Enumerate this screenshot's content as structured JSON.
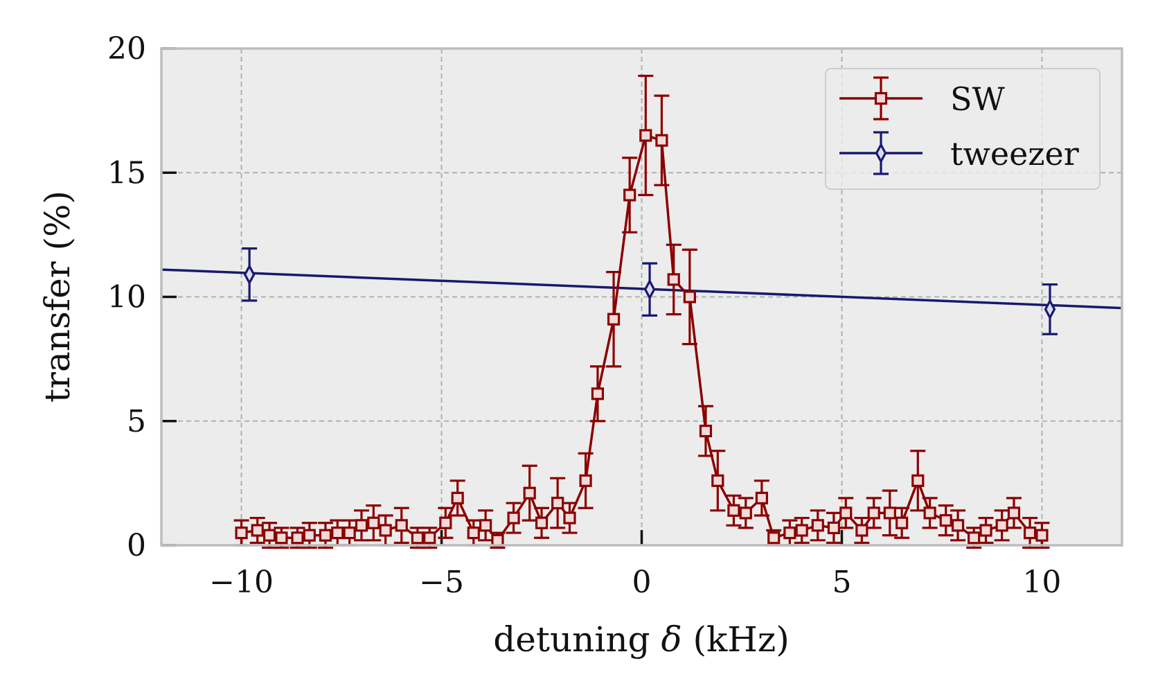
{
  "chart_data": {
    "type": "line",
    "title": "",
    "xlabel_parts": [
      "detuning ",
      "δ",
      " (kHz)"
    ],
    "ylabel": "transfer (%)",
    "xlim": [
      -12,
      12
    ],
    "ylim": [
      0,
      20
    ],
    "xticks": [
      -10,
      -5,
      0,
      5,
      10
    ],
    "xtick_labels": [
      "−10",
      "−5",
      "0",
      "5",
      "10"
    ],
    "yticks": [
      0,
      5,
      10,
      15,
      20
    ],
    "ytick_labels": [
      "0",
      "5",
      "10",
      "15",
      "20"
    ],
    "grid": true,
    "legend_position": "top-right",
    "series": [
      {
        "name": "SW",
        "color": "#8b0000",
        "marker": "square",
        "x": [
          -10,
          -9.6,
          -9.3,
          -9.0,
          -8.6,
          -8.3,
          -7.9,
          -7.6,
          -7.3,
          -7.0,
          -6.7,
          -6.4,
          -6.0,
          -5.6,
          -5.3,
          -4.9,
          -4.6,
          -4.2,
          -3.9,
          -3.6,
          -3.2,
          -2.8,
          -2.5,
          -2.1,
          -1.8,
          -1.4,
          -1.1,
          -0.7,
          -0.3,
          0.1,
          0.5,
          0.8,
          1.2,
          1.6,
          1.9,
          2.3,
          2.6,
          3.0,
          3.3,
          3.7,
          4.0,
          4.4,
          4.8,
          5.1,
          5.5,
          5.8,
          6.2,
          6.5,
          6.9,
          7.2,
          7.6,
          7.9,
          8.3,
          8.6,
          9.0,
          9.3,
          9.7,
          10.0
        ],
        "y": [
          0.5,
          0.6,
          0.4,
          0.3,
          0.3,
          0.4,
          0.4,
          0.5,
          0.5,
          0.8,
          0.9,
          0.6,
          0.8,
          0.3,
          0.3,
          0.9,
          1.9,
          0.5,
          0.8,
          0.2,
          1.1,
          2.1,
          0.9,
          1.7,
          1.1,
          2.6,
          6.1,
          9.1,
          14.1,
          16.5,
          16.3,
          10.7,
          10.0,
          4.6,
          2.6,
          1.4,
          1.3,
          1.9,
          0.3,
          0.5,
          0.6,
          0.8,
          0.7,
          1.3,
          0.6,
          1.3,
          1.3,
          0.9,
          2.6,
          1.3,
          1.0,
          0.8,
          0.3,
          0.6,
          0.8,
          1.3,
          0.5,
          0.4
        ],
        "yerr": [
          0.5,
          0.5,
          0.5,
          0.4,
          0.4,
          0.5,
          0.5,
          0.5,
          0.5,
          0.6,
          0.7,
          0.6,
          0.7,
          0.4,
          0.4,
          0.6,
          0.7,
          0.5,
          0.6,
          0.3,
          0.6,
          1.1,
          0.6,
          1.0,
          0.6,
          1.1,
          1.1,
          1.9,
          1.5,
          2.4,
          1.8,
          1.4,
          1.9,
          1.0,
          1.2,
          0.6,
          0.6,
          0.7,
          0.3,
          0.5,
          0.5,
          0.6,
          0.6,
          0.6,
          0.5,
          0.6,
          0.9,
          0.6,
          1.2,
          0.6,
          0.6,
          0.6,
          0.4,
          0.5,
          0.6,
          0.6,
          0.6,
          0.5
        ]
      },
      {
        "name": "tweezer",
        "color": "#191970",
        "marker": "thin-diamond",
        "x": [
          -9.8,
          0.2,
          10.2
        ],
        "y": [
          10.9,
          10.3,
          9.5
        ],
        "yerr": [
          1.05,
          1.05,
          1.0
        ],
        "fit_line": {
          "x": [
            -12,
            12
          ],
          "y": [
            11.1,
            9.55
          ]
        }
      }
    ]
  }
}
